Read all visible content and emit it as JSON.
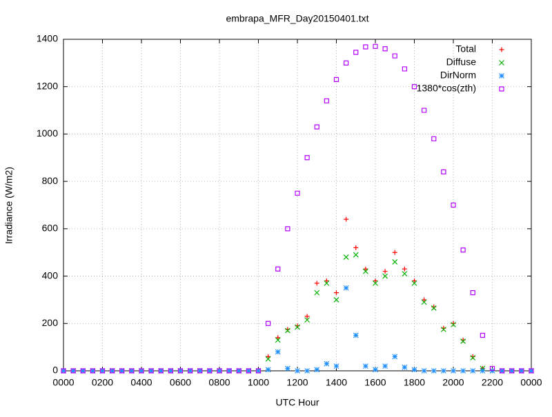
{
  "chart_data": {
    "type": "scatter",
    "title": "embrapa_MFR_Day20150401.txt",
    "x_label": "UTC Hour",
    "y_label": "Irradiance (W/m2)",
    "xlim": [
      0,
      24
    ],
    "ylim": [
      0,
      1400
    ],
    "xticks": [
      {
        "value": 0,
        "label": "0000"
      },
      {
        "value": 2,
        "label": "0200"
      },
      {
        "value": 4,
        "label": "0400"
      },
      {
        "value": 6,
        "label": "0600"
      },
      {
        "value": 8,
        "label": "0800"
      },
      {
        "value": 10,
        "label": "1000"
      },
      {
        "value": 12,
        "label": "1200"
      },
      {
        "value": 14,
        "label": "1400"
      },
      {
        "value": 16,
        "label": "1600"
      },
      {
        "value": 18,
        "label": "1800"
      },
      {
        "value": 20,
        "label": "2000"
      },
      {
        "value": 22,
        "label": "2200"
      },
      {
        "value": 24,
        "label": "0000"
      }
    ],
    "yticks": [
      0,
      200,
      400,
      600,
      800,
      1000,
      1200,
      1400
    ],
    "grid": true,
    "legend": "top-right",
    "x": [
      0,
      0.5,
      1,
      1.5,
      2,
      2.5,
      3,
      3.5,
      4,
      4.5,
      5,
      5.5,
      6,
      6.5,
      7,
      7.5,
      8,
      8.5,
      9,
      9.5,
      10,
      10.5,
      11,
      11.5,
      12,
      12.5,
      13,
      13.5,
      14,
      14.5,
      15,
      15.5,
      16,
      16.5,
      17,
      17.5,
      18,
      18.5,
      19,
      19.5,
      20,
      20.5,
      21,
      21.5,
      22,
      22.5,
      23,
      23.5,
      24
    ],
    "series": [
      {
        "name": "Total",
        "color": "#ff0000",
        "marker": "plus",
        "values": [
          0,
          0,
          0,
          0,
          0,
          0,
          0,
          0,
          0,
          0,
          0,
          0,
          0,
          0,
          0,
          0,
          0,
          0,
          0,
          0,
          0,
          60,
          140,
          175,
          190,
          230,
          370,
          380,
          330,
          640,
          520,
          430,
          380,
          420,
          500,
          430,
          380,
          300,
          270,
          180,
          200,
          130,
          60,
          10,
          0,
          0,
          0,
          0,
          0
        ]
      },
      {
        "name": "Diffuse",
        "color": "#00b000",
        "marker": "cross",
        "values": [
          0,
          0,
          0,
          0,
          0,
          0,
          0,
          0,
          0,
          0,
          0,
          0,
          0,
          0,
          0,
          0,
          0,
          0,
          0,
          0,
          0,
          50,
          130,
          170,
          185,
          215,
          330,
          370,
          300,
          480,
          490,
          420,
          370,
          400,
          460,
          410,
          370,
          290,
          265,
          175,
          195,
          125,
          55,
          10,
          0,
          0,
          0,
          0,
          0
        ]
      },
      {
        "name": "DirNorm",
        "color": "#1e8fff",
        "marker": "star",
        "values": [
          0,
          0,
          0,
          0,
          0,
          0,
          0,
          0,
          0,
          0,
          0,
          0,
          0,
          0,
          0,
          0,
          0,
          0,
          0,
          0,
          0,
          5,
          80,
          10,
          0,
          0,
          5,
          30,
          20,
          350,
          150,
          20,
          5,
          20,
          60,
          15,
          5,
          0,
          0,
          0,
          0,
          0,
          0,
          0,
          0,
          0,
          0,
          0,
          0
        ]
      },
      {
        "name": "1380*cos(zth)",
        "color": "#b400ff",
        "marker": "square",
        "values": [
          0,
          0,
          0,
          0,
          0,
          0,
          0,
          0,
          0,
          0,
          0,
          0,
          0,
          0,
          0,
          0,
          0,
          0,
          0,
          0,
          0,
          200,
          430,
          600,
          750,
          900,
          1030,
          1140,
          1230,
          1300,
          1345,
          1368,
          1370,
          1360,
          1330,
          1275,
          1200,
          1100,
          980,
          840,
          700,
          510,
          330,
          150,
          10,
          0,
          0,
          0,
          0
        ]
      }
    ]
  }
}
